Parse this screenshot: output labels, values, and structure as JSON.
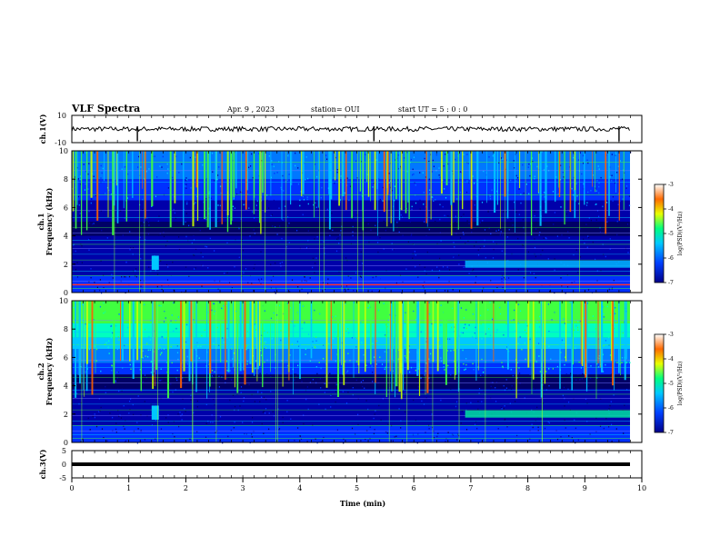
{
  "header": {
    "title": "VLF Spectra",
    "date": "Apr. 9  , 2023",
    "station": "station= OUI",
    "start": "start  UT  =   5  : 0   : 0"
  },
  "colors": {
    "spectrogram_low": "#000066",
    "spectrogram_high": "#cc0000",
    "trace": "#000000"
  },
  "chart_data": [
    {
      "type": "line",
      "ylabel": "ch.1(V)",
      "ylim": [
        -10,
        10
      ],
      "yticks": [
        "10",
        "-10"
      ],
      "xlim": [
        0,
        10
      ],
      "trace_level": 0,
      "spikes_at_min": [
        1.15,
        5.3,
        9.6
      ]
    },
    {
      "type": "heatmap",
      "ylabel_top": "ch.1",
      "ylabel": "Frequency  (kHz)",
      "ylim": [
        0,
        10
      ],
      "yticks": [
        "0",
        "2",
        "4",
        "6",
        "8",
        "10"
      ],
      "xlim": [
        0,
        10
      ],
      "colorbar": {
        "label": "log(PSD)(V²/Hz)",
        "ticks": [
          "-3",
          "-4",
          "-5",
          "-6",
          "-7"
        ],
        "range": [
          -7,
          -3
        ]
      }
    },
    {
      "type": "heatmap",
      "ylabel_top": "ch.2",
      "ylabel": "Frequency  (kHz)",
      "ylim": [
        0,
        10
      ],
      "yticks": [
        "0",
        "2",
        "4",
        "6",
        "8",
        "10"
      ],
      "xlim": [
        0,
        10
      ],
      "colorbar": {
        "label": "log(PSD)(V²/Hz)",
        "ticks": [
          "-3",
          "-4",
          "-5",
          "-6",
          "-7"
        ],
        "range": [
          -7,
          -3
        ]
      }
    },
    {
      "type": "line",
      "ylabel": "ch.3(V)",
      "ylim": [
        -5,
        5
      ],
      "yticks": [
        "5",
        "0",
        "-5"
      ],
      "xlim": [
        0,
        10
      ],
      "trace_level": 0
    }
  ],
  "xaxis": {
    "label": "Time  (min)",
    "ticks": [
      "0",
      "1",
      "2",
      "3",
      "4",
      "5",
      "6",
      "7",
      "8",
      "9",
      "10"
    ]
  }
}
